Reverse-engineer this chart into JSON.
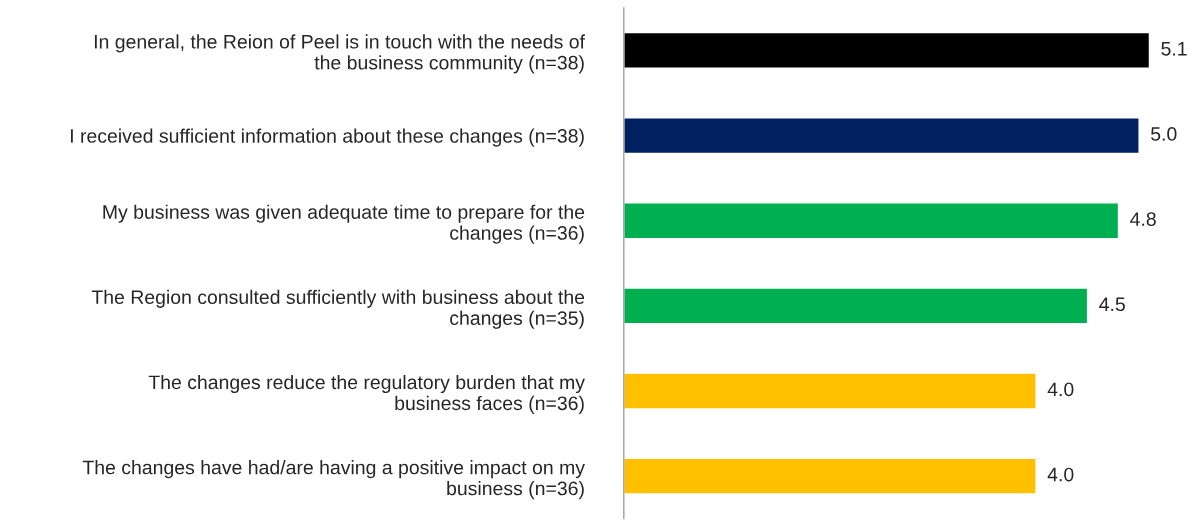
{
  "chart_data": {
    "type": "bar",
    "orientation": "horizontal",
    "categories": [
      "In general, the Reion of Peel is in touch with the needs of the business community (n=38)",
      "I received sufficient information about these changes (n=38)",
      "My business was given adequate time to prepare for the changes (n=36)",
      "The Region consulted sufficiently with business about the changes (n=35)",
      "The changes reduce the regulatory burden that my business faces (n=36)",
      "The changes have had/are having a positive impact on my business (n=36)"
    ],
    "values": [
      5.1,
      5.0,
      4.8,
      4.5,
      4.0,
      4.0
    ],
    "value_labels": [
      "5.1",
      "5.0",
      "4.8",
      "4.5",
      "4.0",
      "4.0"
    ],
    "colors": [
      "#000000",
      "#002060",
      "#00b050",
      "#00b050",
      "#ffc000",
      "#ffc000"
    ],
    "tick_labels": "y",
    "grid": false,
    "legend": false
  }
}
